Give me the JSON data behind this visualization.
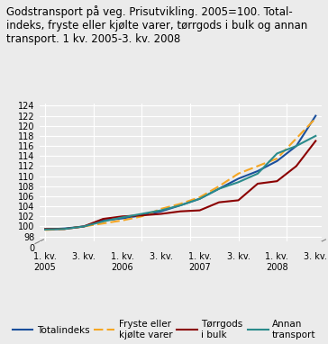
{
  "title_line1": "Godstransport på veg. Prisutvikling. 2005=100. Total-",
  "title_line2": "indeks, fryste eller kjølte varer, tørrgods i bulk og annan",
  "title_line3": "transport. 1 kv. 2005-3. kv. 2008",
  "totalindeks": [
    99.4,
    99.6,
    100.0,
    101.2,
    101.6,
    102.2,
    103.0,
    104.2,
    105.5,
    107.5,
    109.5,
    111.0,
    113.0,
    116.0,
    122.0
  ],
  "fryste": [
    99.3,
    99.5,
    100.0,
    100.6,
    101.2,
    102.0,
    103.5,
    104.5,
    105.8,
    108.0,
    110.5,
    112.0,
    113.5,
    117.5,
    121.5
  ],
  "torrgods": [
    99.5,
    99.5,
    100.0,
    101.5,
    102.0,
    102.2,
    102.5,
    103.0,
    103.2,
    104.8,
    105.2,
    108.5,
    109.0,
    112.0,
    117.0
  ],
  "annan": [
    99.4,
    99.5,
    100.0,
    101.0,
    101.8,
    102.5,
    103.2,
    104.2,
    105.5,
    107.5,
    108.8,
    110.5,
    114.5,
    116.0,
    118.0
  ],
  "color_totalindeks": "#1a4f9c",
  "color_fryste": "#f5a623",
  "color_torrgods": "#8b0000",
  "color_annan": "#2a8b8b",
  "background_color": "#ebebeb",
  "grid_color": "#ffffff",
  "yticks_upper": [
    98,
    100,
    102,
    104,
    106,
    108,
    110,
    112,
    114,
    116,
    118,
    120,
    122,
    124
  ],
  "upper_ylim_min": 97,
  "upper_ylim_max": 124.5,
  "x_tick_pos": [
    0,
    2,
    4,
    6,
    8,
    10,
    12,
    14
  ],
  "x_tick_labels": [
    "1. kv.\n2005",
    "3. kv.",
    "1. kv.\n2006",
    "3. kv.",
    "1. kv.\n2007",
    "3. kv.",
    "1. kv.\n2008",
    "3. kv."
  ],
  "legend_labels": [
    "Totalindeks",
    "Fryste eller\nkjølte varer",
    "Tørrgods\ni bulk",
    "Annan\ntransport"
  ],
  "title_fontsize": 8.5,
  "tick_fontsize": 7,
  "legend_fontsize": 7.5
}
